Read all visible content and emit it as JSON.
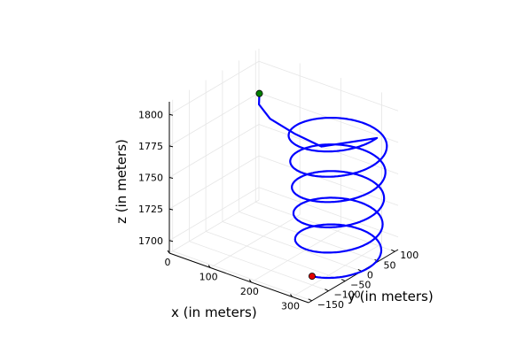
{
  "chart_data": {
    "type": "line",
    "projection": "3d",
    "grid": true,
    "legend": "none",
    "xlabel": "x (in meters)",
    "ylabel": "y (in meters)",
    "zlabel": "z (in meters)",
    "xlim": [
      0,
      340
    ],
    "ylim": [
      -160,
      110
    ],
    "zlim": [
      1690,
      1810
    ],
    "x_ticks": [
      "0",
      "100",
      "200",
      "300"
    ],
    "y_ticks": [
      "-150",
      "-100",
      "-50",
      "0",
      "50",
      "100"
    ],
    "z_ticks": [
      "1700",
      "1725",
      "1750",
      "1775",
      "1800"
    ],
    "series": [
      {
        "color": "#0000ff",
        "helix": {
          "center_start": [
            300,
            -20,
            1697
          ],
          "center_end": [
            250,
            40,
            1790
          ],
          "radius_start": 80,
          "radius_end": 95,
          "turns": 5.25,
          "leadout": {
            "x": [
              250,
              210,
              165,
              150,
              155
            ],
            "y": [
              -10,
              -40,
              -60,
              -75,
              -80
            ],
            "z": [
              1780,
              1790,
              1800,
              1812,
              1822
            ]
          }
        }
      }
    ],
    "markers": [
      {
        "name": "start",
        "x": 300,
        "y": -100,
        "z": 1697,
        "color": "#e00000"
      },
      {
        "name": "end",
        "x": 155,
        "y": -80,
        "z": 1822,
        "color": "#007f00"
      }
    ]
  }
}
